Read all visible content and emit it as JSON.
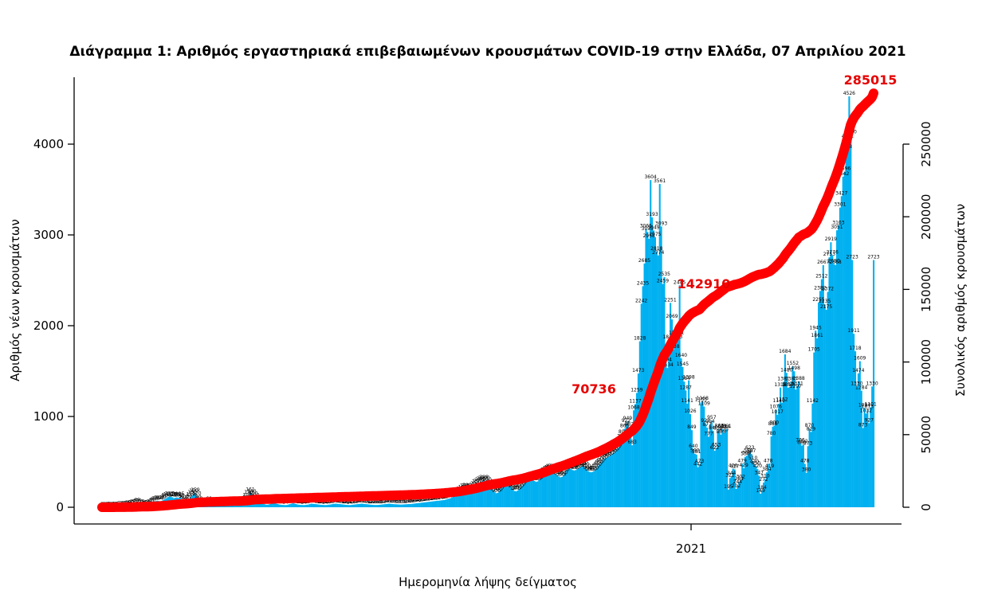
{
  "chart_data": {
    "type": "bar",
    "title": "Διάγραμμα 1: Αριθμός εργαστηριακά επιβεβαιωμένων κρουσμάτων COVID-19 στην Ελλάδα, 07 Απριλίου 2021",
    "xlabel": "Ημερομηνία λήψης δείγματος",
    "ylabel": "Αριθμός νέων κρουσμάτων",
    "ylabel_right": "Συνολικός αριθμός κρουσμάτων",
    "x_tick_labels": [
      "2021"
    ],
    "ylim": [
      0,
      4600
    ],
    "ylim_right": [
      0,
      285015
    ],
    "y_ticks": [
      0,
      1000,
      2000,
      3000,
      4000
    ],
    "y_ticks_right": [
      0,
      50000,
      100000,
      150000,
      200000,
      250000
    ],
    "grid": false,
    "bar_color": "#00b0f0",
    "line_color": "#ff0000",
    "daily_cases": [
      2,
      2,
      2,
      2,
      3,
      3,
      4,
      4,
      5,
      6,
      6,
      7,
      7,
      8,
      10,
      12,
      14,
      16,
      18,
      20,
      25,
      30,
      40,
      49,
      35,
      30,
      25,
      20,
      18,
      15,
      20,
      30,
      40,
      50,
      60,
      68,
      72,
      69,
      64,
      70,
      80,
      90,
      100,
      111,
      117,
      113,
      110,
      100,
      105,
      108,
      102,
      115,
      90,
      80,
      60,
      50,
      70,
      90,
      110,
      130,
      150,
      159,
      120,
      80,
      60,
      50,
      40,
      35,
      30,
      40,
      60,
      50,
      40,
      35,
      30,
      28,
      26,
      30,
      32,
      35,
      40,
      45,
      42,
      40,
      35,
      30,
      28,
      26,
      25,
      24,
      25,
      30,
      40,
      60,
      80,
      100,
      130,
      161,
      140,
      120,
      100,
      80,
      60,
      50,
      45,
      40,
      35,
      30,
      28,
      30,
      35,
      40,
      45,
      50,
      40,
      35,
      30,
      28,
      26,
      25,
      24,
      25,
      30,
      35,
      40,
      45,
      40,
      35,
      30,
      28,
      26,
      25,
      24,
      25,
      28,
      30,
      35,
      40,
      38,
      36,
      34,
      32,
      30,
      28,
      26,
      25,
      24,
      25,
      28,
      30,
      32,
      35,
      38,
      40,
      38,
      36,
      34,
      32,
      30,
      28,
      26,
      25,
      24,
      25,
      28,
      30,
      32,
      34,
      36,
      38,
      40,
      38,
      36,
      34,
      32,
      30,
      28,
      27,
      26,
      25,
      25,
      26,
      28,
      30,
      32,
      34,
      36,
      38,
      40,
      38,
      36,
      34,
      33,
      32,
      31,
      30,
      30,
      31,
      32,
      33,
      34,
      35,
      36,
      38,
      40,
      42,
      44,
      46,
      48,
      50,
      52,
      54,
      56,
      58,
      60,
      62,
      64,
      66,
      68,
      70,
      72,
      74,
      76,
      78,
      80,
      85,
      90,
      95,
      100,
      110,
      120,
      125,
      121,
      126,
      150,
      170,
      190,
      200,
      205,
      210,
      195,
      180,
      190,
      210,
      230,
      250,
      260,
      270,
      280,
      290,
      298,
      290,
      270,
      250,
      230,
      210,
      190,
      170,
      155,
      160,
      180,
      200,
      220,
      240,
      250,
      255,
      256,
      240,
      220,
      200,
      180,
      175,
      185,
      200,
      220,
      240,
      260,
      280,
      300,
      311,
      320,
      315,
      300,
      290,
      280,
      285,
      300,
      320,
      340,
      360,
      380,
      400,
      410,
      420,
      423,
      410,
      390,
      370,
      350,
      340,
      330,
      335,
      350,
      380,
      410,
      438,
      431,
      420,
      410,
      405,
      410,
      420,
      430,
      440,
      450,
      460,
      440,
      420,
      400,
      390,
      385,
      390,
      400,
      420,
      440,
      460,
      480,
      500,
      520,
      538,
      545,
      555,
      560,
      575,
      590,
      600,
      620,
      640,
      657,
      700,
      750,
      800,
      865,
      922,
      949,
      882,
      816,
      683,
      1068,
      1137,
      1259,
      1473,
      1828,
      2242,
      2435,
      2685,
      3065,
      3033,
      2958,
      3604,
      3193,
      3049,
      2975,
      2818,
      2774,
      3561,
      3093,
      2459,
      2535,
      1594,
      1534,
      1840,
      2251,
      2069,
      1738,
      1884,
      1843,
      1891,
      2445,
      1640,
      1545,
      1384,
      1287,
      1141,
      1398,
      1026,
      849,
      640,
      590,
      581,
      442,
      473,
      1155,
      1168,
      1109,
      923,
      877,
      777,
      914,
      957,
      840,
      622,
      653,
      836,
      863,
      800,
      861,
      820,
      854,
      861,
      195,
      322,
      344,
      426,
      417,
      202,
      244,
      281,
      302,
      479,
      429,
      556,
      568,
      590,
      623,
      587,
      510,
      470,
      450,
      420,
      347,
      149,
      184,
      272,
      310,
      384,
      478,
      419,
      780,
      888,
      900,
      1076,
      1017,
      1140,
      1318,
      1152,
      1381,
      1684,
      1480,
      1317,
      1326,
      1383,
      1552,
      1498,
      1297,
      1331,
      1388,
      706,
      680,
      692,
      478,
      380,
      673,
      870,
      829,
      1142,
      1705,
      1945,
      1861,
      2255,
      2382,
      2512,
      2667,
      2235,
      2175,
      2372,
      2753,
      2919,
      2776,
      2680,
      2668,
      3051,
      3103,
      3301,
      3427,
      3642,
      3696,
      3938,
      4051,
      4526,
      4100,
      2723,
      1911,
      1718,
      1330,
      1474,
      1609,
      1284,
      873,
      1094,
      1032,
      1073,
      927,
      1101,
      1330,
      2723
    ],
    "cumulative_labels": [
      "70736",
      "142910",
      "285015"
    ],
    "cumulative_total": 285015
  }
}
